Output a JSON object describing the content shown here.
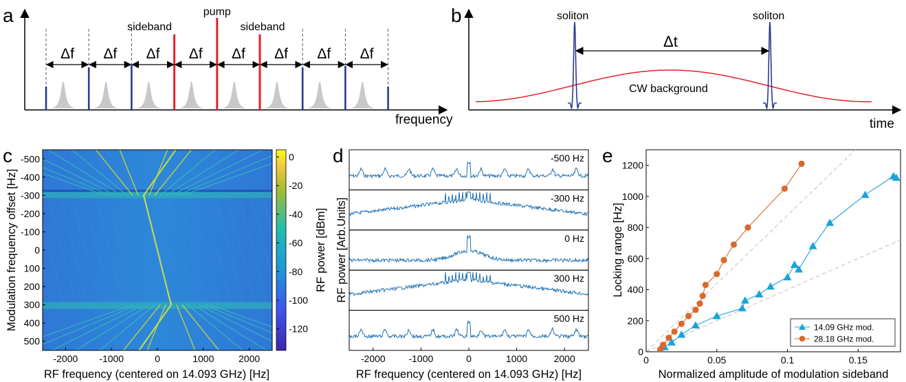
{
  "panels": {
    "a": "a",
    "b": "b",
    "c": "c",
    "d": "d",
    "e": "e"
  },
  "colors": {
    "blue": "#2b3990",
    "red": "#e8202a",
    "gray": "#c8c8c8",
    "trace": "#1f6fb0",
    "orange": "#d8692a",
    "cyan": "#1aa3d8",
    "dashed": "#c8c8c8"
  },
  "panel_a": {
    "xlabel": "frequency",
    "df_label": "Δf",
    "pump_label": "pump",
    "sideband_label": "sideband"
  },
  "panel_b": {
    "xlabel": "time",
    "soliton_label": "soliton",
    "dt_label": "Δt",
    "cw_label": "CW background"
  },
  "chart_data": [
    {
      "id": "c",
      "type": "heatmap",
      "xlabel": "RF frequency (centered on 14.093 GHz) [Hz]",
      "ylabel": "Modulation frequency offset [Hz]",
      "xticks": [
        -2000,
        -1000,
        0,
        1000,
        2000
      ],
      "yticks": [
        -500,
        -400,
        -300,
        -200,
        -100,
        0,
        100,
        200,
        300,
        400,
        500
      ],
      "xlim": [
        -2500,
        2500
      ],
      "ylim": [
        -550,
        550
      ],
      "colorbar": {
        "label": "RF power [dBm]",
        "ticks": [
          0,
          -20,
          -40,
          -60,
          -80,
          -100,
          -120
        ],
        "range": [
          -135,
          5
        ]
      }
    },
    {
      "id": "d",
      "type": "line",
      "xlabel": "RF frequency (centered on 14.093 GHz) [Hz]",
      "ylabel": "RF power [Arb.Units]",
      "xticks": [
        -2000,
        -1000,
        0,
        1000,
        2000
      ],
      "xlim": [
        -2500,
        2500
      ],
      "traces": [
        "-500 Hz",
        "-300 Hz",
        "0 Hz",
        "300 Hz",
        "500 Hz"
      ]
    },
    {
      "id": "e",
      "type": "scatter",
      "xlabel": "Normalized amplitude of modulation sideband",
      "ylabel": "Locking range [Hz]",
      "xlim": [
        0,
        0.18
      ],
      "ylim": [
        0,
        1300
      ],
      "xticks": [
        0,
        0.05,
        0.1,
        0.15
      ],
      "yticks": [
        0,
        200,
        400,
        600,
        800,
        1000,
        1200
      ],
      "legend_position": "bottom-right",
      "series": [
        {
          "name": "14.09 GHz mod.",
          "marker": "triangle",
          "x": [
            0.01,
            0.013,
            0.018,
            0.025,
            0.035,
            0.05,
            0.068,
            0.07,
            0.08,
            0.088,
            0.1,
            0.105,
            0.108,
            0.118,
            0.13,
            0.155,
            0.175,
            0.177
          ],
          "y": [
            15,
            30,
            60,
            110,
            170,
            230,
            280,
            330,
            370,
            420,
            480,
            560,
            530,
            680,
            830,
            1010,
            1130,
            1120
          ]
        },
        {
          "name": "28.18 GHz mod.",
          "marker": "circle",
          "x": [
            0.01,
            0.012,
            0.016,
            0.02,
            0.025,
            0.03,
            0.035,
            0.038,
            0.04,
            0.042,
            0.05,
            0.055,
            0.062,
            0.072,
            0.098,
            0.11
          ],
          "y": [
            15,
            45,
            90,
            130,
            180,
            230,
            270,
            310,
            360,
            430,
            500,
            590,
            690,
            800,
            1050,
            1210
          ]
        }
      ]
    }
  ]
}
